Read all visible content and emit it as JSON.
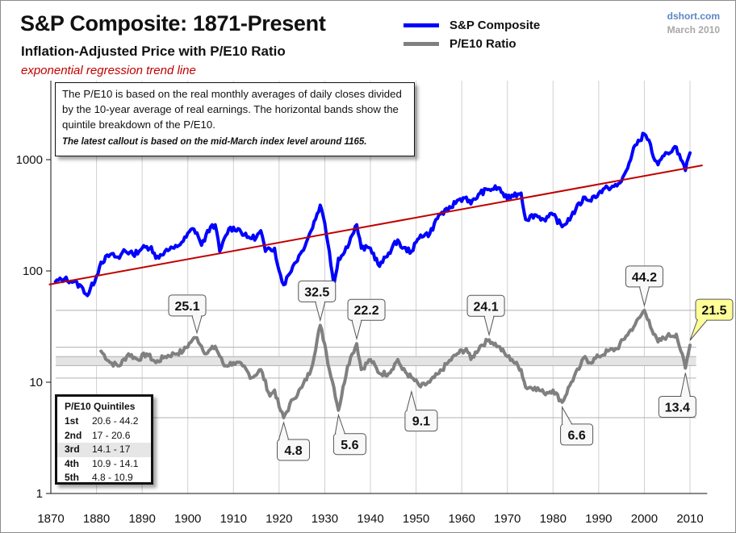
{
  "header": {
    "title": "S&P Composite: 1871-Present",
    "subtitle": "Inflation-Adjusted  Price with P/E10 Ratio",
    "trend_note": "exponential regression trend line",
    "source_site": "dshort.com",
    "source_date": "March 2010"
  },
  "legend": [
    {
      "label": "S&P Composite",
      "color": "#0000ff"
    },
    {
      "label": "P/E10 Ratio",
      "color": "#808080"
    }
  ],
  "notes": {
    "body": "The P/E10 is based on the real monthly averages of daily closes divided by the 10-year average of real earnings. The horizontal bands show the quintile breakdown of the P/E10.",
    "latest": "The latest callout is based on the mid-March index level around 1165."
  },
  "quintiles": {
    "title": "P/E10 Quintiles",
    "rows": [
      {
        "rank": "1st",
        "range": "20.6 - 44.2",
        "highlight": false
      },
      {
        "rank": "2nd",
        "range": "17 - 20.6",
        "highlight": false
      },
      {
        "rank": "3rd",
        "range": "14.1 - 17",
        "highlight": true
      },
      {
        "rank": "4th",
        "range": "10.9 - 14.1",
        "highlight": false
      },
      {
        "rank": "5th",
        "range": "4.8 - 10.9",
        "highlight": false
      }
    ]
  },
  "colors": {
    "sp": "#0000ff",
    "pe": "#808080",
    "trend": "#c00000",
    "band": "#e4e4e4",
    "grid": "#d0d0d0",
    "callout_latest": "#ffff99"
  },
  "chart_data": {
    "type": "line",
    "title": "S&P Composite: 1871-Present",
    "subtitle": "Inflation-Adjusted Price with P/E10 Ratio",
    "xlabel": "",
    "ylabel": "",
    "yscale": "log",
    "ylim": [
      1,
      5000
    ],
    "xlim": [
      1870,
      2012
    ],
    "yticks": [
      1,
      10,
      100,
      1000
    ],
    "ytick_labels": [
      "1",
      "10",
      "100",
      "1000"
    ],
    "xticks": [
      1870,
      1880,
      1890,
      1900,
      1910,
      1920,
      1930,
      1940,
      1950,
      1960,
      1970,
      1980,
      1990,
      2000,
      2010
    ],
    "xtick_labels": [
      "1870",
      "1880",
      "1890",
      "1900",
      "1910",
      "1920",
      "1930",
      "1940",
      "1950",
      "1960",
      "1970",
      "1980",
      "1990",
      "2000",
      "2010"
    ],
    "grid": "vertical",
    "legend_position": "top-center",
    "quintile_lines": [
      44.2,
      20.6,
      17,
      14.1,
      10.9,
      4.8
    ],
    "middle_band": [
      14.1,
      17
    ],
    "series": [
      {
        "name": "S&P Composite",
        "x": [
          1871,
          1873,
          1875,
          1877,
          1878,
          1880,
          1881,
          1883,
          1885,
          1886,
          1888,
          1890,
          1892,
          1893,
          1895,
          1897,
          1899,
          1901,
          1902,
          1903,
          1905,
          1906,
          1907,
          1909,
          1911,
          1913,
          1915,
          1916,
          1917,
          1919,
          1920,
          1921,
          1923,
          1925,
          1927,
          1929,
          1930,
          1931,
          1932,
          1933,
          1934,
          1936,
          1937,
          1938,
          1940,
          1942,
          1944,
          1946,
          1947,
          1949,
          1951,
          1953,
          1955,
          1957,
          1959,
          1961,
          1962,
          1964,
          1966,
          1968,
          1970,
          1971,
          1973,
          1974,
          1976,
          1978,
          1980,
          1982,
          1984,
          1985,
          1987,
          1988,
          1990,
          1992,
          1994,
          1995,
          1997,
          1998,
          2000,
          2001,
          2002,
          2003,
          2005,
          2007,
          2008,
          2009,
          2010
        ],
        "values": [
          80,
          85,
          80,
          70,
          60,
          90,
          120,
          140,
          130,
          155,
          140,
          160,
          165,
          130,
          150,
          160,
          185,
          240,
          220,
          170,
          250,
          260,
          150,
          240,
          240,
          200,
          200,
          230,
          150,
          160,
          100,
          75,
          110,
          150,
          230,
          390,
          270,
          150,
          75,
          130,
          140,
          210,
          260,
          160,
          160,
          110,
          145,
          190,
          160,
          150,
          210,
          215,
          320,
          350,
          430,
          460,
          400,
          500,
          540,
          560,
          440,
          480,
          500,
          290,
          320,
          290,
          320,
          250,
          310,
          360,
          460,
          430,
          500,
          560,
          580,
          640,
          1000,
          1350,
          1700,
          1500,
          1050,
          900,
          1150,
          1300,
          1000,
          800,
          1150
        ]
      },
      {
        "name": "P/E10 Ratio",
        "x": [
          1881,
          1883,
          1885,
          1887,
          1889,
          1891,
          1893,
          1895,
          1897,
          1899,
          1901,
          1902,
          1904,
          1906,
          1908,
          1910,
          1912,
          1914,
          1916,
          1918,
          1919,
          1920,
          1921,
          1923,
          1925,
          1927,
          1929,
          1930,
          1931,
          1932,
          1933,
          1935,
          1936,
          1937,
          1938,
          1940,
          1942,
          1944,
          1946,
          1947,
          1949,
          1951,
          1953,
          1955,
          1957,
          1959,
          1961,
          1962,
          1964,
          1966,
          1968,
          1970,
          1971,
          1973,
          1974,
          1976,
          1978,
          1980,
          1982,
          1984,
          1986,
          1987,
          1988,
          1990,
          1992,
          1994,
          1996,
          1998,
          2000,
          2001,
          2002,
          2003,
          2005,
          2007,
          2008,
          2009,
          2010
        ],
        "values": [
          19,
          15,
          14,
          18,
          16,
          18,
          15,
          17,
          18,
          19,
          24,
          25.1,
          18,
          21,
          14,
          15,
          14,
          11,
          13,
          7.5,
          8.5,
          6,
          4.8,
          7,
          9,
          13,
          32.5,
          22,
          13,
          9,
          5.6,
          14,
          18,
          22.2,
          13,
          16,
          12,
          12,
          16,
          13,
          11,
          9.1,
          10,
          12,
          15,
          18,
          20,
          16,
          21,
          24.1,
          21,
          17,
          16,
          13,
          9,
          9,
          8,
          8.5,
          6.6,
          10,
          14,
          17,
          15,
          17,
          19,
          20,
          26,
          33,
          44.2,
          36,
          27,
          23,
          26,
          27,
          19,
          13.4,
          21.5
        ]
      },
      {
        "name": "Exponential regression trend line",
        "x": [
          1871,
          2011
        ],
        "values": [
          78,
          860
        ]
      }
    ],
    "annotations": [
      {
        "label": "25.1",
        "x": 1902,
        "y": 25.1,
        "position": "above",
        "highlight": false
      },
      {
        "label": "4.8",
        "x": 1921,
        "y": 4.8,
        "position": "below",
        "highlight": false
      },
      {
        "label": "32.5",
        "x": 1929,
        "y": 32.5,
        "position": "above",
        "highlight": false
      },
      {
        "label": "5.6",
        "x": 1933,
        "y": 5.6,
        "position": "below",
        "highlight": false
      },
      {
        "label": "22.2",
        "x": 1937,
        "y": 22.2,
        "position": "above",
        "highlight": false
      },
      {
        "label": "9.1",
        "x": 1949,
        "y": 9.1,
        "position": "below",
        "highlight": false
      },
      {
        "label": "24.1",
        "x": 1966,
        "y": 24.1,
        "position": "above",
        "highlight": false
      },
      {
        "label": "6.6",
        "x": 1982,
        "y": 6.6,
        "position": "below",
        "highlight": false
      },
      {
        "label": "44.2",
        "x": 2000,
        "y": 44.2,
        "position": "above",
        "highlight": false
      },
      {
        "label": "13.4",
        "x": 2009,
        "y": 13.4,
        "position": "below",
        "highlight": false
      },
      {
        "label": "21.5",
        "x": 2010,
        "y": 21.5,
        "position": "above-right",
        "highlight": true
      }
    ]
  }
}
